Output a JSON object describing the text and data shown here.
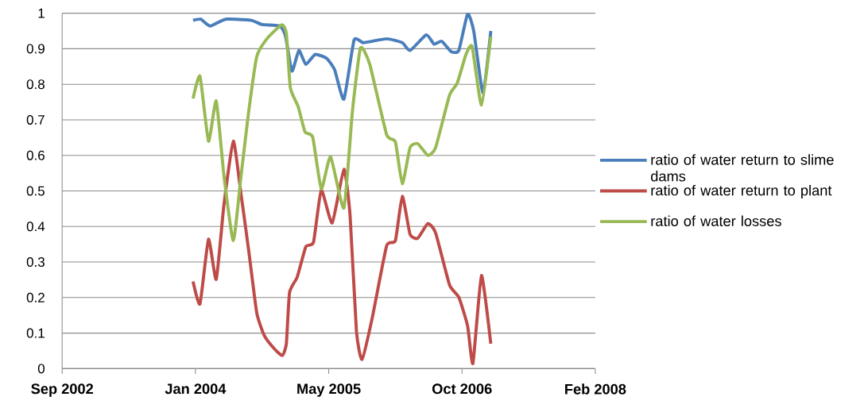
{
  "chart_data": {
    "type": "line",
    "xlim": [
      "2002-09-01",
      "2008-02-22"
    ],
    "xticks": [
      {
        "value": "2002-09-01",
        "label": "Sep 2002"
      },
      {
        "value": "2004-01-14",
        "label": "Jan 2004"
      },
      {
        "value": "2005-05-28",
        "label": "May 2005"
      },
      {
        "value": "2006-10-10",
        "label": "Oct 2006"
      },
      {
        "value": "2008-02-22",
        "label": "Feb 2008"
      }
    ],
    "ylim": [
      0,
      1
    ],
    "yticks": [
      0,
      0.1,
      0.2,
      0.3,
      0.4,
      0.5,
      0.6,
      0.7,
      0.8,
      0.9,
      1
    ],
    "grid": "y",
    "legend": "right",
    "marker": "none",
    "line_style": "solid",
    "series": [
      {
        "name": "ratio of water return to slime dams",
        "color": "#4a7ebb",
        "x": [
          "2004-01-05",
          "2004-02-03",
          "2004-03-09",
          "2004-05-06",
          "2004-08-10",
          "2004-09-20",
          "2004-11-26",
          "2004-12-17",
          "2005-01-10",
          "2005-02-05",
          "2005-03-03",
          "2005-04-07",
          "2005-05-20",
          "2005-06-19",
          "2005-07-24",
          "2005-08-31",
          "2005-10-06",
          "2005-12-31",
          "2006-02-28",
          "2006-03-29",
          "2006-05-29",
          "2006-06-27",
          "2006-07-26",
          "2006-08-30",
          "2006-09-28",
          "2006-10-31",
          "2006-11-23",
          "2006-12-28",
          "2007-01-26"
        ],
        "values": [
          0.98,
          0.983,
          0.964,
          0.983,
          0.98,
          0.968,
          0.964,
          0.935,
          0.837,
          0.895,
          0.856,
          0.884,
          0.873,
          0.841,
          0.758,
          0.924,
          0.917,
          0.928,
          0.917,
          0.895,
          0.939,
          0.913,
          0.921,
          0.892,
          0.895,
          0.998,
          0.95,
          0.775,
          0.95
        ]
      },
      {
        "name": "ratio of water return to plant",
        "color": "#be4b48",
        "x": [
          "2004-01-05",
          "2004-01-31",
          "2004-03-03",
          "2004-04-01",
          "2004-04-30",
          "2004-06-04",
          "2004-07-03",
          "2004-08-01",
          "2004-08-31",
          "2004-09-29",
          "2004-11-06",
          "2004-12-05",
          "2004-12-20",
          "2005-01-01",
          "2005-01-30",
          "2005-03-03",
          "2005-04-01",
          "2005-04-30",
          "2005-06-10",
          "2005-07-24",
          "2005-08-16",
          "2005-09-09",
          "2005-09-30",
          "2005-11-07",
          "2005-12-31",
          "2006-02-02",
          "2006-02-28",
          "2006-03-29",
          "2006-04-27",
          "2006-06-04",
          "2006-07-03",
          "2006-08-24",
          "2006-09-28",
          "2006-10-31",
          "2006-11-20",
          "2006-12-22",
          "2007-01-26"
        ],
        "values": [
          0.245,
          0.182,
          0.364,
          0.251,
          0.462,
          0.64,
          0.491,
          0.331,
          0.157,
          0.092,
          0.055,
          0.037,
          0.07,
          0.214,
          0.258,
          0.343,
          0.356,
          0.502,
          0.41,
          0.561,
          0.432,
          0.105,
          0.026,
          0.142,
          0.345,
          0.36,
          0.485,
          0.378,
          0.367,
          0.408,
          0.382,
          0.236,
          0.201,
          0.12,
          0.015,
          0.262,
          0.07
        ]
      },
      {
        "name": "ratio of water losses",
        "color": "#98b954",
        "x": [
          "2004-01-05",
          "2004-01-31",
          "2004-03-03",
          "2004-04-01",
          "2004-04-30",
          "2004-06-04",
          "2004-07-03",
          "2004-08-01",
          "2004-08-31",
          "2004-10-08",
          "2004-12-02",
          "2004-12-20",
          "2005-01-04",
          "2005-02-02",
          "2005-02-28",
          "2005-03-29",
          "2005-04-30",
          "2005-06-04",
          "2005-07-24",
          "2005-08-25",
          "2005-09-24",
          "2005-10-29",
          "2005-12-31",
          "2006-02-02",
          "2006-02-28",
          "2006-03-29",
          "2006-04-27",
          "2006-06-04",
          "2006-07-03",
          "2006-08-24",
          "2006-09-22",
          "2006-10-25",
          "2006-11-17",
          "2006-12-22",
          "2007-01-26"
        ],
        "values": [
          0.76,
          0.823,
          0.64,
          0.753,
          0.542,
          0.36,
          0.542,
          0.725,
          0.878,
          0.928,
          0.967,
          0.943,
          0.79,
          0.738,
          0.666,
          0.651,
          0.506,
          0.596,
          0.452,
          0.725,
          0.902,
          0.856,
          0.659,
          0.638,
          0.52,
          0.622,
          0.633,
          0.6,
          0.622,
          0.769,
          0.803,
          0.884,
          0.906,
          0.742,
          0.934
        ]
      }
    ]
  }
}
